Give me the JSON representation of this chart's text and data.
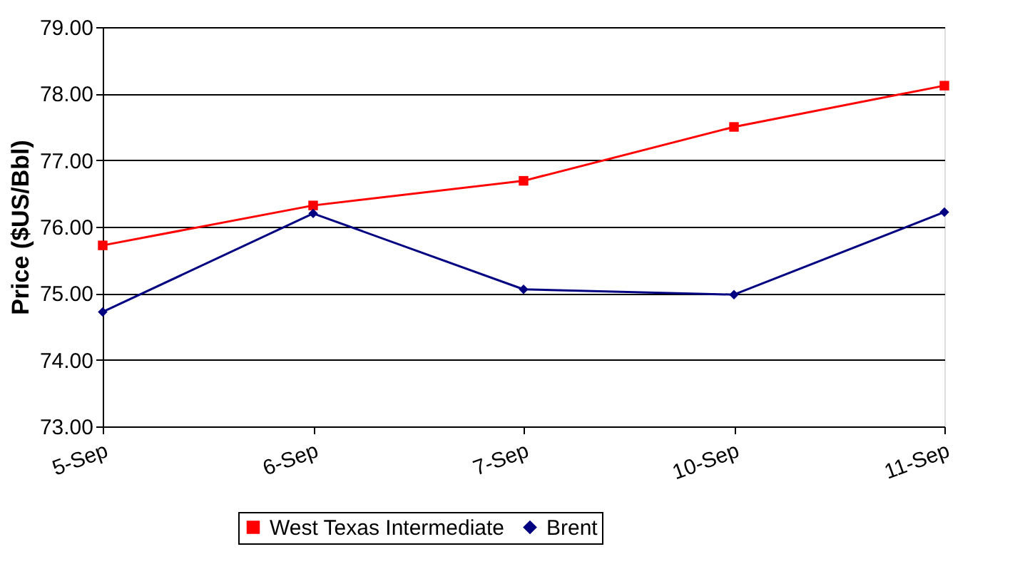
{
  "chart_data": {
    "type": "line",
    "ylabel": "Price ($US/Bbl)",
    "categories": [
      "5-Sep",
      "6-Sep",
      "7-Sep",
      "10-Sep",
      "11-Sep"
    ],
    "series": [
      {
        "name": "West Texas Intermediate",
        "color": "#ff0000",
        "marker": "square",
        "values": [
          75.72,
          76.32,
          76.69,
          77.5,
          78.12
        ]
      },
      {
        "name": "Brent",
        "color": "#000080",
        "marker": "diamond",
        "values": [
          74.72,
          76.2,
          75.06,
          74.98,
          76.22
        ]
      }
    ],
    "ylim": [
      73,
      79
    ],
    "yticks": [
      {
        "value": 73,
        "label": "73.00"
      },
      {
        "value": 74,
        "label": "74.00"
      },
      {
        "value": 75,
        "label": "75.00"
      },
      {
        "value": 76,
        "label": "76.00"
      },
      {
        "value": 77,
        "label": "77.00"
      },
      {
        "value": 78,
        "label": "78.00"
      },
      {
        "value": 79,
        "label": "79.00"
      }
    ],
    "grid": "y",
    "legend": "bottom",
    "line_style": "solid"
  }
}
